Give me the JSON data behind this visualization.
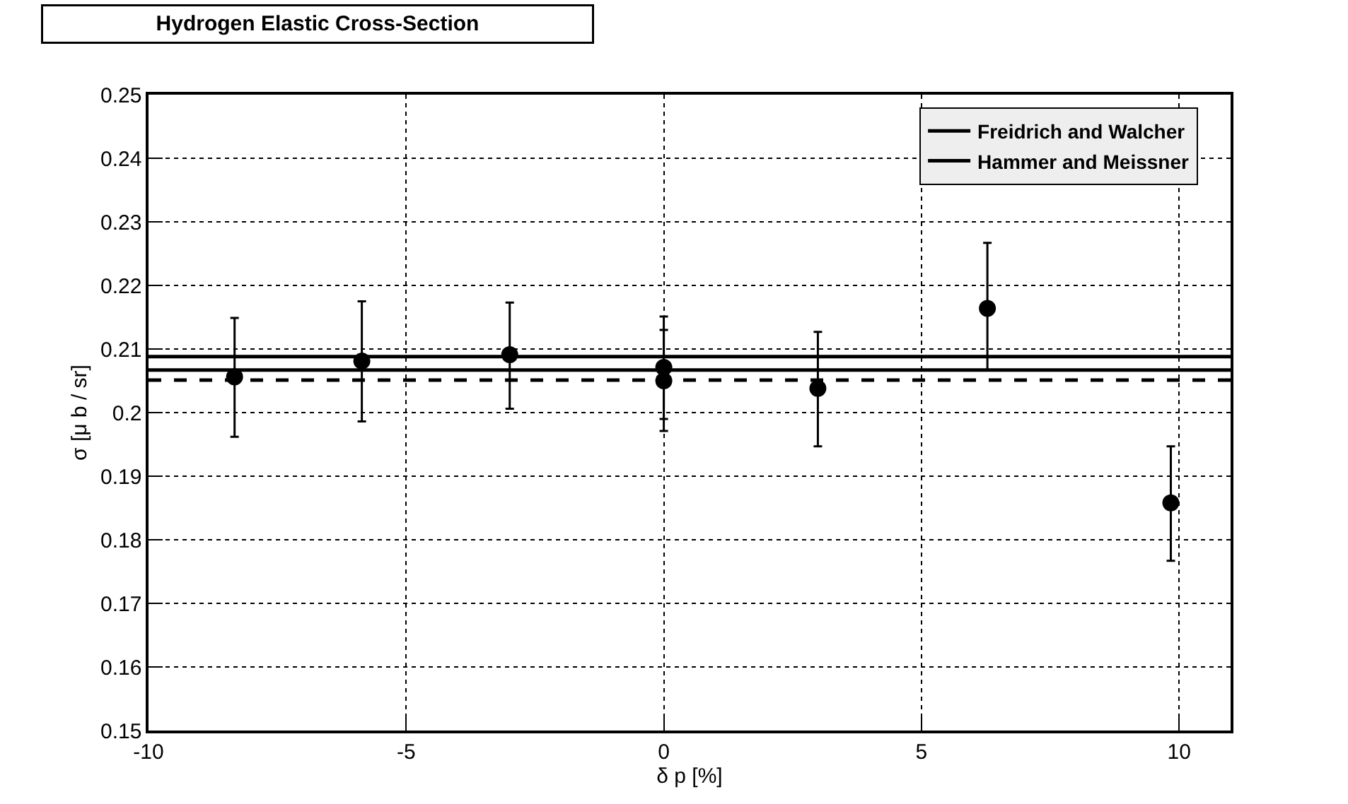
{
  "chart_data": {
    "type": "scatter",
    "title": "Hydrogen Elastic Cross-Section",
    "xlabel": "δ p [%]",
    "ylabel": "σ [μ b / sr]",
    "xlim": [
      -10,
      11
    ],
    "xticks": [
      -10,
      -5,
      0,
      5,
      10
    ],
    "ylim": [
      0.15,
      0.25
    ],
    "yticks": [
      0.15,
      0.16,
      0.17,
      0.18,
      0.19,
      0.2,
      0.21,
      0.22,
      0.23,
      0.24,
      0.25
    ],
    "grid": true,
    "legend": "top right",
    "series": [
      {
        "marker": "circle",
        "color": "#000000",
        "x": [
          -8.33,
          -5.86,
          -2.99,
          0,
          0,
          2.99,
          6.28,
          9.84
        ],
        "values": [
          0.2056,
          0.2081,
          0.2091,
          0.2071,
          0.205,
          0.2038,
          0.2164,
          0.1858
        ],
        "errors": [
          [
            0.1962,
            0.2149
          ],
          [
            0.1986,
            0.2175
          ],
          [
            0.2006,
            0.2173
          ],
          [
            0.1971,
            0.2151
          ],
          [
            0.199,
            0.213
          ],
          [
            0.1947,
            0.2127
          ],
          [
            0.2067,
            0.2267
          ],
          [
            0.1767,
            0.1947
          ]
        ]
      },
      {
        "type": "line",
        "name": "Freidrich and Walcher",
        "color": "#000000",
        "line_style": "solid",
        "x": [
          -10,
          11
        ],
        "values": [
          0.2088,
          0.2088
        ]
      },
      {
        "type": "line",
        "name": "Hammer and Meissner",
        "color": "#000000",
        "line_style": "solid",
        "x": [
          -10,
          11
        ],
        "values": [
          0.2067,
          0.2067
        ]
      },
      {
        "type": "line",
        "color": "#000000",
        "line_style": "dashed",
        "x": [
          -10,
          11
        ],
        "values": [
          0.2051,
          0.2051
        ]
      }
    ]
  }
}
